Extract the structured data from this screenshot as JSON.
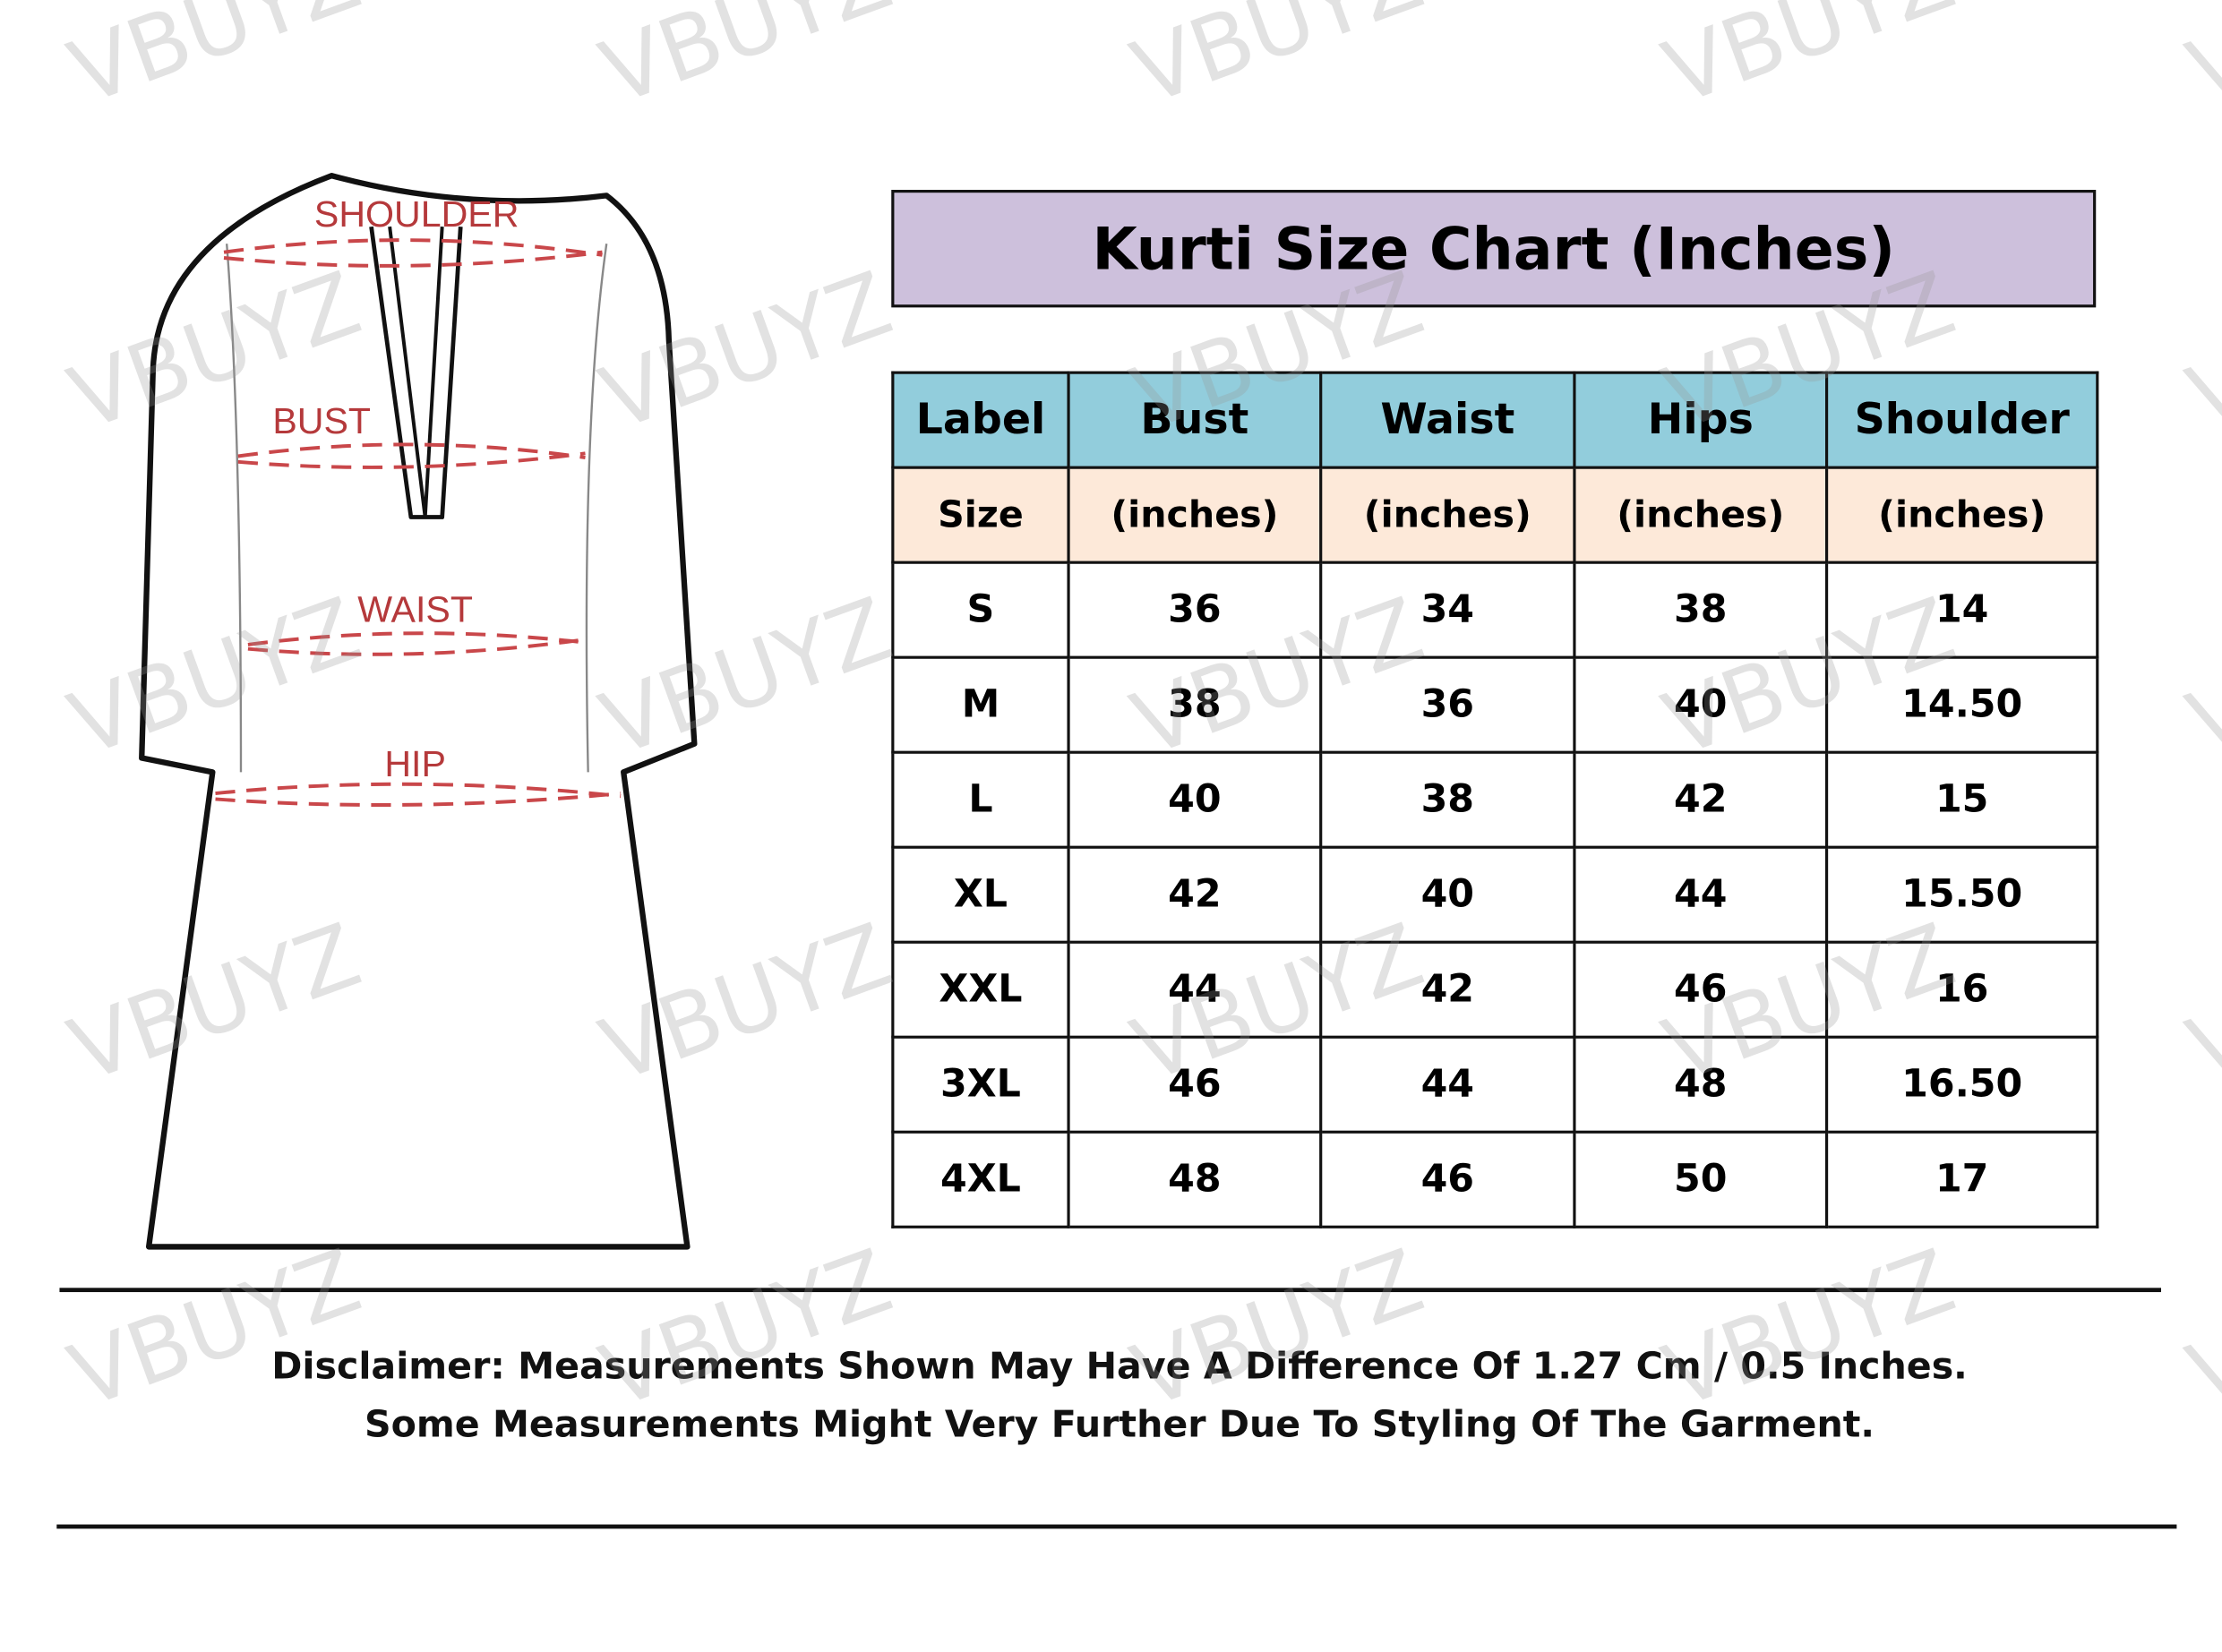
{
  "watermark": "VBUYZ",
  "diagram": {
    "labels": {
      "shoulder": "SHOULDER",
      "bust": "BUST",
      "waist": "WAIST",
      "hip": "HIP"
    },
    "label_color": "#b5393b"
  },
  "title": "Kurti Size Chart (Inches)",
  "colors": {
    "title_bg": "#cdc0dc",
    "header_bg": "#92cddc",
    "subheader_bg": "#fde9d9"
  },
  "table": {
    "headers": [
      "Label",
      "Bust",
      "Waist",
      "Hips",
      "Shoulder"
    ],
    "subheaders": [
      "Size",
      "(inches)",
      "(inches)",
      "(inches)",
      "(inches)"
    ],
    "rows": [
      [
        "S",
        "36",
        "34",
        "38",
        "14"
      ],
      [
        "M",
        "38",
        "36",
        "40",
        "14.50"
      ],
      [
        "L",
        "40",
        "38",
        "42",
        "15"
      ],
      [
        "XL",
        "42",
        "40",
        "44",
        "15.50"
      ],
      [
        "XXL",
        "44",
        "42",
        "46",
        "16"
      ],
      [
        "3XL",
        "46",
        "44",
        "48",
        "16.50"
      ],
      [
        "4XL",
        "48",
        "46",
        "50",
        "17"
      ]
    ]
  },
  "disclaimer": {
    "line1": "Disclaimer: Measurements Shown May Have A Difference Of 1.27 Cm / 0.5 Inches.",
    "line2": "Some Measurements Might Very Further Due To Styling Of The Garment."
  }
}
